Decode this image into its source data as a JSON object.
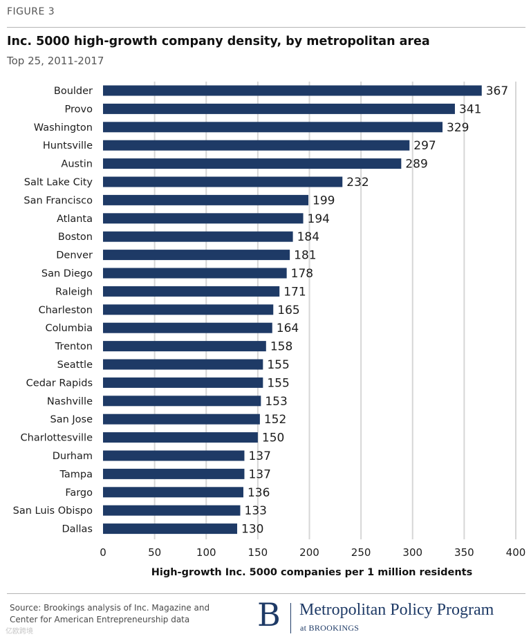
{
  "header": {
    "figure_label": "FIGURE 3",
    "title": "Inc. 5000 high-growth company density, by metropolitan area",
    "subtitle": "Top 25, 2011-2017"
  },
  "colors": {
    "bar": "#1e3a66",
    "grid": "#d6d6d6",
    "text": "#1c1c1c",
    "muted": "#555555"
  },
  "chart_data": {
    "type": "bar",
    "orientation": "horizontal",
    "categories": [
      "Boulder",
      "Provo",
      "Washington",
      "Huntsville",
      "Austin",
      "Salt Lake City",
      "San Francisco",
      "Atlanta",
      "Boston",
      "Denver",
      "San Diego",
      "Raleigh",
      "Charleston",
      "Columbia",
      "Trenton",
      "Seattle",
      "Cedar Rapids",
      "Nashville",
      "San Jose",
      "Charlottesville",
      "Durham",
      "Tampa",
      "Fargo",
      "San Luis Obispo",
      "Dallas"
    ],
    "values": [
      367,
      341,
      329,
      297,
      289,
      232,
      199,
      194,
      184,
      181,
      178,
      171,
      165,
      164,
      158,
      155,
      155,
      153,
      152,
      150,
      137,
      137,
      136,
      133,
      130
    ],
    "xlabel": "High-growth Inc. 5000 companies per 1 million residents",
    "ylabel": "",
    "xlim": [
      0,
      400
    ],
    "xticks": [
      "0",
      "50",
      "100",
      "150",
      "200",
      "250",
      "300",
      "350",
      "400"
    ],
    "grid": "vertical",
    "data_labels": true,
    "legend": "none"
  },
  "footer": {
    "source": "Source: Brookings analysis of Inc. Magazine and Center for American Entrepreneurship data",
    "logo_letter": "B",
    "logo_name": "Metropolitan Policy Program",
    "logo_sub": "at BROOKINGS",
    "watermark": "亿欧跨境"
  }
}
